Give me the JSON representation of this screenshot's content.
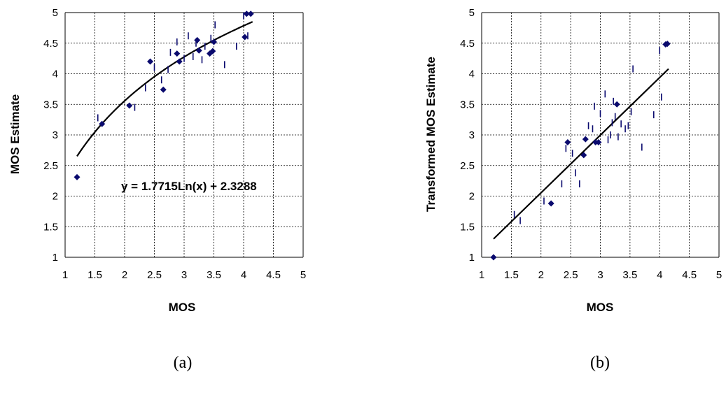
{
  "colors": {
    "marker": "#0a0a6e",
    "grid": "#000000",
    "fit": "#000000"
  },
  "chart_data": [
    {
      "type": "scatter",
      "xlabel": "MOS",
      "ylabel": "MOS Estimate",
      "xlim": [
        1,
        5
      ],
      "ylim": [
        1,
        5
      ],
      "xticks": [
        "1",
        "1.5",
        "2",
        "2.5",
        "3",
        "3.5",
        "4",
        "4.5",
        "5"
      ],
      "yticks": [
        "1",
        "1.5",
        "2",
        "2.5",
        "3",
        "3.5",
        "4",
        "4.5",
        "5"
      ],
      "grid": true,
      "caption": "(a)",
      "equation": "y = 1.7715Ln(x) + 2.3288",
      "fit": {
        "kind": "log",
        "a": 1.7715,
        "b": 2.3288,
        "x_range": [
          1.2,
          4.15
        ]
      },
      "points": [
        [
          1.2,
          2.31
        ],
        [
          1.62,
          3.18
        ],
        [
          2.08,
          3.48
        ],
        [
          2.43,
          4.2
        ],
        [
          2.65,
          3.74
        ],
        [
          2.88,
          4.33
        ],
        [
          2.92,
          4.2
        ],
        [
          3.22,
          4.55
        ],
        [
          3.25,
          4.38
        ],
        [
          3.43,
          4.33
        ],
        [
          3.48,
          4.37
        ],
        [
          3.5,
          4.52
        ],
        [
          4.02,
          4.6
        ],
        [
          4.05,
          4.98
        ],
        [
          4.12,
          4.98
        ]
      ],
      "dash_marks": [
        [
          1.55,
          3.28
        ],
        [
          2.17,
          3.45
        ],
        [
          2.35,
          3.77
        ],
        [
          2.5,
          4.1
        ],
        [
          2.62,
          3.9
        ],
        [
          2.73,
          4.07
        ],
        [
          2.77,
          4.35
        ],
        [
          2.88,
          4.52
        ],
        [
          3.0,
          4.25
        ],
        [
          3.07,
          4.62
        ],
        [
          3.15,
          4.28
        ],
        [
          3.2,
          4.5
        ],
        [
          3.3,
          4.23
        ],
        [
          3.35,
          4.45
        ],
        [
          3.45,
          4.58
        ],
        [
          3.52,
          4.8
        ],
        [
          3.68,
          4.15
        ],
        [
          3.88,
          4.45
        ],
        [
          4.0,
          4.95
        ],
        [
          4.07,
          4.62
        ]
      ]
    },
    {
      "type": "scatter",
      "xlabel": "MOS",
      "ylabel": "Transformed MOS Estimate",
      "xlim": [
        1,
        5
      ],
      "ylim": [
        1,
        5
      ],
      "xticks": [
        "1",
        "1.5",
        "2",
        "2.5",
        "3",
        "3.5",
        "4",
        "4.5",
        "5"
      ],
      "yticks": [
        "1",
        "1.5",
        "2",
        "2.5",
        "3",
        "3.5",
        "4",
        "4.5",
        "5"
      ],
      "grid": true,
      "caption": "(b)",
      "fit": {
        "kind": "linear",
        "points": [
          [
            1.2,
            1.3
          ],
          [
            4.15,
            4.08
          ]
        ]
      },
      "points": [
        [
          1.2,
          1.0
        ],
        [
          2.17,
          1.88
        ],
        [
          2.45,
          2.88
        ],
        [
          2.72,
          2.67
        ],
        [
          2.75,
          2.93
        ],
        [
          2.92,
          2.88
        ],
        [
          2.97,
          2.88
        ],
        [
          3.28,
          3.5
        ],
        [
          4.1,
          4.48
        ],
        [
          4.13,
          4.49
        ]
      ],
      "dash_marks": [
        [
          1.55,
          1.7
        ],
        [
          1.65,
          1.6
        ],
        [
          2.05,
          1.92
        ],
        [
          2.35,
          2.2
        ],
        [
          2.42,
          2.78
        ],
        [
          2.53,
          2.7
        ],
        [
          2.58,
          2.38
        ],
        [
          2.65,
          2.2
        ],
        [
          2.8,
          3.15
        ],
        [
          2.87,
          3.1
        ],
        [
          2.9,
          3.47
        ],
        [
          3.0,
          3.35
        ],
        [
          3.08,
          3.67
        ],
        [
          3.13,
          2.92
        ],
        [
          3.17,
          3.0
        ],
        [
          3.2,
          3.2
        ],
        [
          3.22,
          3.55
        ],
        [
          3.25,
          3.3
        ],
        [
          3.3,
          2.97
        ],
        [
          3.35,
          3.18
        ],
        [
          3.42,
          3.1
        ],
        [
          3.47,
          3.15
        ],
        [
          3.52,
          3.38
        ],
        [
          3.55,
          4.08
        ],
        [
          3.7,
          2.8
        ],
        [
          3.9,
          3.33
        ],
        [
          4.0,
          4.38
        ],
        [
          4.03,
          3.62
        ]
      ]
    }
  ]
}
